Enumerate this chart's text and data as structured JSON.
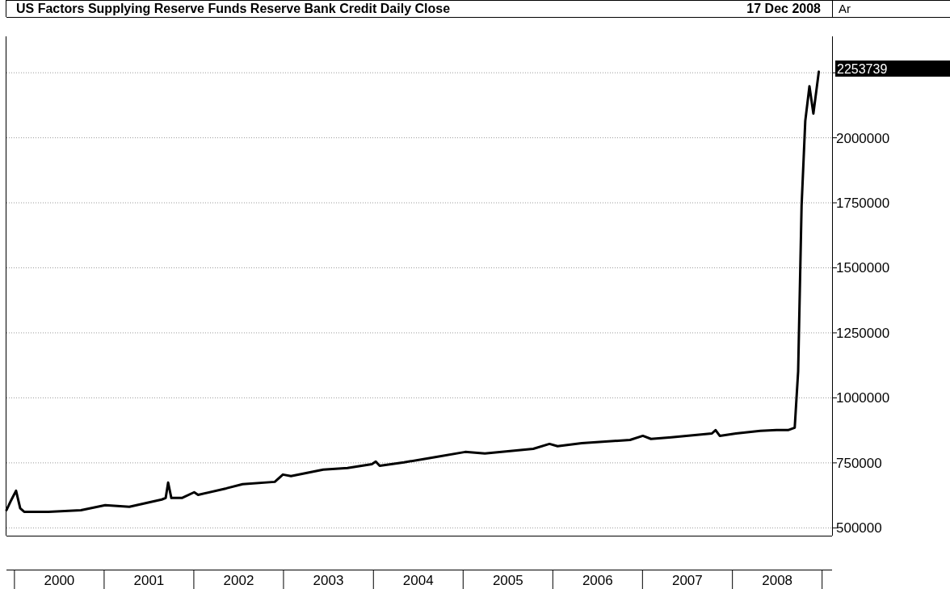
{
  "chart_data": {
    "type": "line",
    "title": "US Factors Supplying Reserve Funds Reserve Bank Credit Daily Close",
    "subtitle": "17 Dec 2008",
    "annotations": [
      "Ar",
      {
        "text": "2253739",
        "x": "2008-12-17",
        "y": 2253739
      }
    ],
    "x": [
      "1999-11-29",
      "1999-12-18",
      "2000-01-07",
      "2000-01-24",
      "2000-02-09",
      "2000-05-18",
      "2000-09-27",
      "2001-01-04",
      "2001-04-12",
      "2001-08-22",
      "2001-09-07",
      "2001-09-17",
      "2001-09-30",
      "2001-11-12",
      "2002-01-01",
      "2002-01-17",
      "2002-05-12",
      "2002-07-17",
      "2002-11-25",
      "2002-12-28",
      "2003-01-30",
      "2003-06-10",
      "2003-09-17",
      "2003-12-25",
      "2004-01-10",
      "2004-01-26",
      "2004-05-04",
      "2004-09-13",
      "2005-01-08",
      "2005-03-29",
      "2005-10-12",
      "2005-12-17",
      "2006-01-19",
      "2006-04-27",
      "2006-11-10",
      "2007-01-01",
      "2007-02-03",
      "2007-04-27",
      "2007-10-09",
      "2007-10-24",
      "2007-11-10",
      "2008-01-15",
      "2008-04-23",
      "2008-06-28",
      "2008-08-14",
      "2008-09-10",
      "2008-09-24",
      "2008-10-08",
      "2008-10-23",
      "2008-11-09",
      "2008-11-25",
      "2008-12-17"
    ],
    "series": [
      {
        "color": "#000000",
        "values": [
          568000,
          606000,
          643000,
          575000,
          562000,
          562000,
          568000,
          587000,
          581000,
          609000,
          615000,
          674000,
          615000,
          615000,
          637000,
          627000,
          652000,
          668000,
          677000,
          705000,
          699000,
          724000,
          730000,
          745000,
          755000,
          739000,
          752000,
          773000,
          792000,
          786000,
          804000,
          823000,
          814000,
          826000,
          838000,
          854000,
          842000,
          848000,
          863000,
          876000,
          854000,
          863000,
          873000,
          876000,
          876000,
          885000,
          1102000,
          1739000,
          2065000,
          2198000,
          2093000,
          2253739
        ]
      }
    ],
    "xlim": [
      "1999-11-29",
      "2009-02-09"
    ],
    "xticks": [
      {
        "value": "2000-07-01",
        "label": "2000"
      },
      {
        "value": "2001-07-01",
        "label": "2001"
      },
      {
        "value": "2002-07-01",
        "label": "2002"
      },
      {
        "value": "2003-07-01",
        "label": "2003"
      },
      {
        "value": "2004-07-01",
        "label": "2004"
      },
      {
        "value": "2005-07-01",
        "label": "2005"
      },
      {
        "value": "2006-07-01",
        "label": "2006"
      },
      {
        "value": "2007-07-01",
        "label": "2007"
      },
      {
        "value": "2008-07-01",
        "label": "2008"
      }
    ],
    "ylim": [
      470000,
      2390000
    ],
    "yticks": [
      500000,
      750000,
      1000000,
      1250000,
      1500000,
      1750000,
      2000000,
      {
        "value": 2250000,
        "label": null
      }
    ],
    "grid": "y",
    "line_style": "solid",
    "marker": "none"
  }
}
